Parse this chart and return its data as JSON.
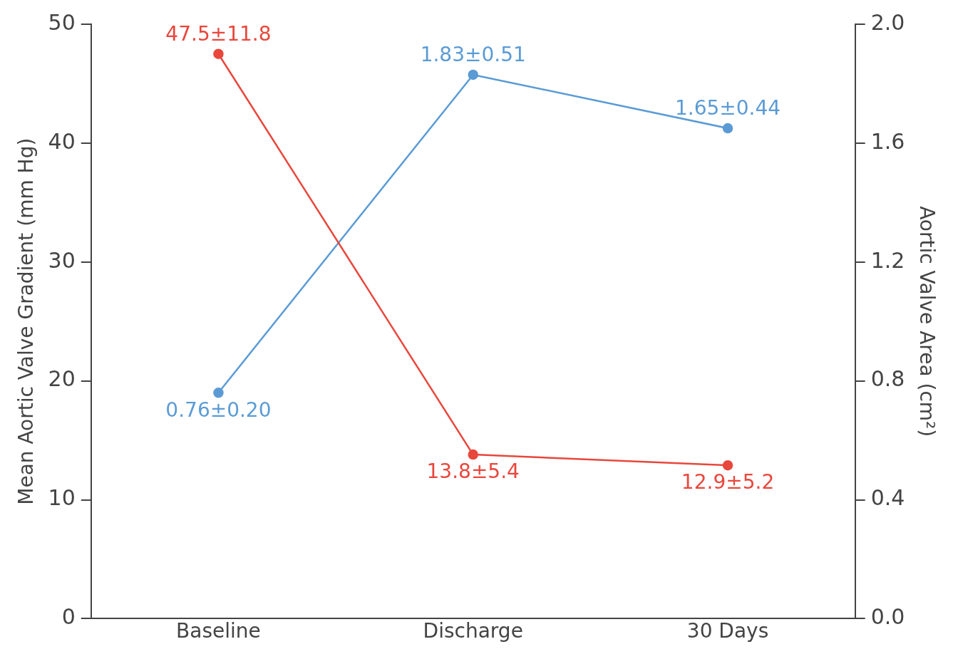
{
  "chart_data": {
    "type": "line",
    "categories": [
      "Baseline",
      "Discharge",
      "30 Days"
    ],
    "ylabel": "Mean Aortic Valve Gradient (mm Hg)",
    "y2label": "Aortic Valve Area (cm²)",
    "ylim": [
      0,
      50
    ],
    "yticks": [
      0,
      10,
      20,
      30,
      40,
      50
    ],
    "y2lim": [
      0,
      2
    ],
    "y2ticks": [
      {
        "value": 0,
        "label": "0.0"
      },
      {
        "value": 0.4,
        "label": "0.4"
      },
      {
        "value": 0.8,
        "label": "0.8"
      },
      {
        "value": 1.2,
        "label": "1.2"
      },
      {
        "value": 1.6,
        "label": "1.6"
      },
      {
        "value": 2,
        "label": "2.0"
      }
    ],
    "grid": false,
    "legend": false,
    "marker": "circle",
    "line_style": "solid",
    "series": [
      {
        "color": "#e8473c",
        "values": [
          47.5,
          13.8,
          12.9
        ],
        "value_labels": [
          "47.5±11.8",
          "13.8±5.4",
          "12.9±5.2"
        ]
      },
      {
        "color": "#5b9bd5",
        "axis": "y2",
        "values": [
          0.76,
          1.83,
          1.65
        ],
        "value_labels": [
          "0.76±0.20",
          "1.83±0.51",
          "1.65±0.44"
        ]
      }
    ]
  }
}
